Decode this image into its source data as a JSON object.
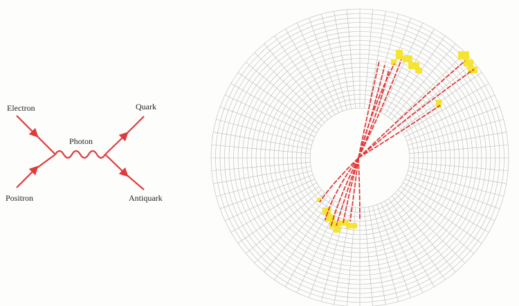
{
  "labels": {
    "electron": "Electron",
    "positron": "Positron",
    "photon": "Photon",
    "quark": "Quark",
    "antiquark": "Antiquark"
  }
}
